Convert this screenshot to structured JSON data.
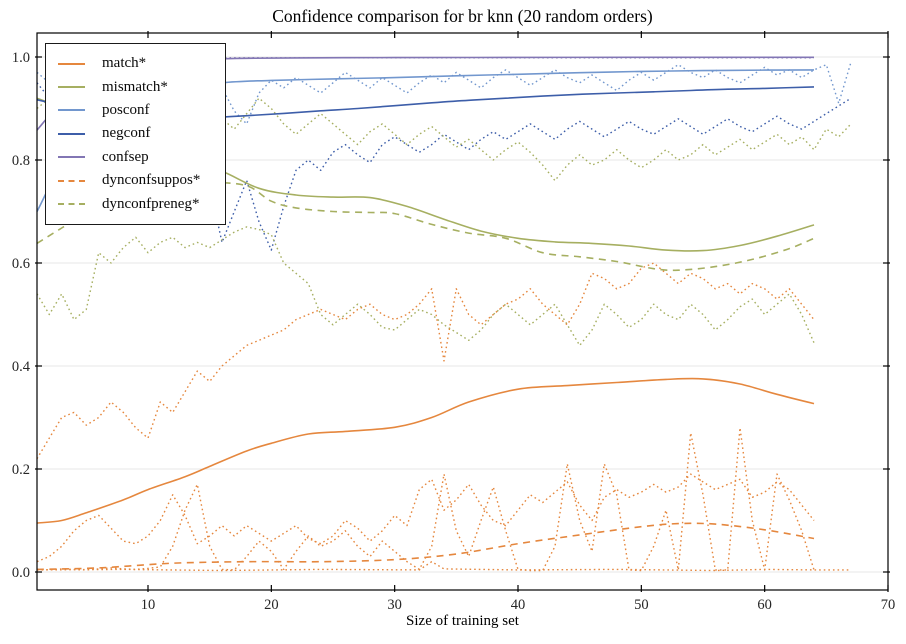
{
  "chart_data": {
    "type": "line",
    "title": "Confidence comparison for br knn (20 random orders)",
    "xlabel": "Size of training set",
    "ylabel": "",
    "xlim": [
      1,
      70
    ],
    "ylim": [
      0.0,
      1.0
    ],
    "x_ticks": [
      "10",
      "20",
      "30",
      "40",
      "50",
      "60",
      "70"
    ],
    "y_ticks": [
      "0.0",
      "0.2",
      "0.4",
      "0.6",
      "0.8",
      "1.0"
    ],
    "grid": "horizontal",
    "legend_position": "upper left",
    "colors": {
      "orange": "#E5873E",
      "olive": "#A6AF61",
      "lightblue": "#7297CE",
      "blue": "#3D5EA9",
      "purple": "#8276B4",
      "grid": "#E7E7E7",
      "axis": "#000000",
      "text": "#262626"
    },
    "legend": [
      {
        "label": "match*",
        "color": "orange",
        "dash": false
      },
      {
        "label": "mismatch*",
        "color": "olive",
        "dash": false
      },
      {
        "label": "posconf",
        "color": "lightblue",
        "dash": false
      },
      {
        "label": "negconf",
        "color": "blue",
        "dash": false
      },
      {
        "label": "confsep",
        "color": "purple",
        "dash": false
      },
      {
        "label": "dynconfsuppos*",
        "color": "orange",
        "dash": true
      },
      {
        "label": "dynconfpreneg*",
        "color": "olive",
        "dash": true
      }
    ],
    "series": [
      {
        "name": "posconf_run",
        "color": "lightblue",
        "style": "dotted",
        "x_start": 1,
        "x_step": 1,
        "y": [
          0.97,
          0.95,
          0.96,
          0.94,
          0.96,
          0.95,
          0.97,
          0.96,
          0.95,
          0.96,
          0.94,
          0.95,
          0.96,
          0.96,
          0.935,
          0.94,
          0.895,
          0.87,
          0.93,
          0.955,
          0.94,
          0.96,
          0.945,
          0.93,
          0.95,
          0.97,
          0.955,
          0.94,
          0.96,
          0.945,
          0.93,
          0.95,
          0.965,
          0.95,
          0.97,
          0.955,
          0.94,
          0.96,
          0.975,
          0.96,
          0.945,
          0.96,
          0.975,
          0.96,
          0.95,
          0.965,
          0.95,
          0.935,
          0.955,
          0.97,
          0.955,
          0.97,
          0.985,
          0.97,
          0.96,
          0.975,
          0.96,
          0.95,
          0.965,
          0.98,
          0.965,
          0.975,
          0.96,
          0.975,
          0.985,
          0.91,
          0.99
        ]
      },
      {
        "name": "negconf_run",
        "color": "blue",
        "style": "dotted",
        "x_start": 1,
        "x_step": 1,
        "y": [
          0.95,
          0.92,
          0.9,
          0.91,
          0.89,
          0.9,
          0.88,
          0.86,
          0.87,
          0.85,
          0.83,
          0.82,
          0.81,
          0.8,
          0.75,
          0.64,
          0.7,
          0.76,
          0.68,
          0.625,
          0.71,
          0.78,
          0.8,
          0.78,
          0.815,
          0.83,
          0.81,
          0.795,
          0.83,
          0.845,
          0.83,
          0.815,
          0.83,
          0.85,
          0.835,
          0.82,
          0.84,
          0.855,
          0.84,
          0.855,
          0.87,
          0.855,
          0.84,
          0.86,
          0.875,
          0.86,
          0.845,
          0.86,
          0.875,
          0.86,
          0.85,
          0.865,
          0.88,
          0.865,
          0.85,
          0.865,
          0.88,
          0.865,
          0.855,
          0.87,
          0.885,
          0.87,
          0.86,
          0.875,
          0.89,
          0.905,
          0.92
        ]
      },
      {
        "name": "mismatch_run_hi",
        "color": "olive",
        "style": "dotted",
        "x_start": 1,
        "x_step": 1,
        "y": [
          0.9,
          0.92,
          0.89,
          0.91,
          0.93,
          0.9,
          0.92,
          0.94,
          0.91,
          0.89,
          0.92,
          0.9,
          0.93,
          0.93,
          0.9,
          0.88,
          0.86,
          0.89,
          0.92,
          0.9,
          0.87,
          0.85,
          0.87,
          0.89,
          0.87,
          0.85,
          0.83,
          0.855,
          0.87,
          0.85,
          0.83,
          0.85,
          0.865,
          0.845,
          0.825,
          0.84,
          0.82,
          0.8,
          0.82,
          0.835,
          0.815,
          0.79,
          0.76,
          0.79,
          0.81,
          0.79,
          0.8,
          0.82,
          0.8,
          0.785,
          0.8,
          0.82,
          0.8,
          0.81,
          0.83,
          0.81,
          0.825,
          0.84,
          0.82,
          0.835,
          0.85,
          0.83,
          0.845,
          0.82,
          0.86,
          0.845,
          0.87
        ]
      },
      {
        "name": "mismatch_run_lo",
        "color": "olive",
        "style": "dotted",
        "x_start": 1,
        "x_step": 1,
        "y": [
          0.54,
          0.5,
          0.54,
          0.49,
          0.51,
          0.62,
          0.6,
          0.63,
          0.65,
          0.62,
          0.64,
          0.65,
          0.63,
          0.64,
          0.63,
          0.645,
          0.66,
          0.67,
          0.665,
          0.655,
          0.6,
          0.58,
          0.56,
          0.5,
          0.48,
          0.5,
          0.52,
          0.5,
          0.475,
          0.47,
          0.49,
          0.51,
          0.5,
          0.48,
          0.465,
          0.45,
          0.47,
          0.5,
          0.52,
          0.5,
          0.48,
          0.5,
          0.52,
          0.48,
          0.44,
          0.47,
          0.52,
          0.5,
          0.475,
          0.49,
          0.52,
          0.5,
          0.49,
          0.52,
          0.5,
          0.47,
          0.49,
          0.515,
          0.53,
          0.5,
          0.52,
          0.54,
          0.5,
          0.445
        ]
      },
      {
        "name": "match_run_hi",
        "color": "orange",
        "style": "dotted",
        "x_start": 1,
        "x_step": 1,
        "y": [
          0.22,
          0.26,
          0.3,
          0.31,
          0.285,
          0.3,
          0.33,
          0.31,
          0.28,
          0.26,
          0.33,
          0.31,
          0.35,
          0.39,
          0.37,
          0.4,
          0.42,
          0.44,
          0.45,
          0.46,
          0.47,
          0.49,
          0.5,
          0.51,
          0.5,
          0.49,
          0.51,
          0.52,
          0.5,
          0.49,
          0.5,
          0.52,
          0.55,
          0.41,
          0.55,
          0.5,
          0.48,
          0.5,
          0.52,
          0.53,
          0.55,
          0.52,
          0.5,
          0.48,
          0.52,
          0.58,
          0.57,
          0.55,
          0.56,
          0.59,
          0.6,
          0.58,
          0.56,
          0.58,
          0.57,
          0.55,
          0.56,
          0.54,
          0.56,
          0.55,
          0.53,
          0.55,
          0.52,
          0.49
        ]
      },
      {
        "name": "match_run_lo",
        "color": "orange",
        "style": "dotted",
        "x_start": 1,
        "x_step": 1,
        "y": [
          0.02,
          0.03,
          0.05,
          0.08,
          0.1,
          0.11,
          0.085,
          0.06,
          0.055,
          0.07,
          0.1,
          0.15,
          0.11,
          0.055,
          0.07,
          0.09,
          0.07,
          0.09,
          0.075,
          0.06,
          0.075,
          0.09,
          0.065,
          0.055,
          0.07,
          0.1,
          0.085,
          0.06,
          0.08,
          0.11,
          0.09,
          0.16,
          0.18,
          0.12,
          0.14,
          0.17,
          0.13,
          0.1,
          0.09,
          0.12,
          0.15,
          0.135,
          0.155,
          0.175,
          0.13,
          0.1,
          0.145,
          0.16,
          0.145,
          0.155,
          0.17,
          0.155,
          0.165,
          0.19,
          0.175,
          0.16,
          0.17,
          0.18,
          0.145,
          0.155,
          0.175,
          0.16,
          0.13,
          0.1
        ]
      },
      {
        "name": "dynconfsuppos_run_hi",
        "color": "orange",
        "style": "dotted",
        "x_start": 1,
        "x_step": 1,
        "y": [
          0.005,
          0.004,
          0.006,
          0.005,
          0.004,
          0.006,
          0.008,
          0.006,
          0.005,
          0.007,
          0.01,
          0.05,
          0.12,
          0.17,
          0.05,
          0.005,
          0.004,
          0.03,
          0.06,
          0.04,
          0.005,
          0.04,
          0.07,
          0.05,
          0.06,
          0.08,
          0.05,
          0.03,
          0.06,
          0.04,
          0.02,
          0.005,
          0.05,
          0.19,
          0.08,
          0.03,
          0.1,
          0.165,
          0.08,
          0.005,
          0.003,
          0.003,
          0.05,
          0.21,
          0.1,
          0.04,
          0.21,
          0.15,
          0.004,
          0.003,
          0.05,
          0.12,
          0.004,
          0.27,
          0.15,
          0.004,
          0.004,
          0.28,
          0.1,
          0.004,
          0.19,
          0.14,
          0.08,
          0.004
        ]
      },
      {
        "name": "dynconfsuppos_run_lo",
        "color": "orange",
        "style": "dotted",
        "x": [
          1,
          8,
          16,
          24,
          32,
          33,
          34,
          40,
          48,
          56,
          60,
          64,
          67
        ],
        "y": [
          0.004,
          0.005,
          0.003,
          0.005,
          0.004,
          0.02,
          0.006,
          0.004,
          0.005,
          0.003,
          0.005,
          0.004,
          0.004
        ]
      },
      {
        "name": "dynconfpreneg_mean",
        "color": "olive",
        "style": "dashed",
        "smooth": true,
        "x": [
          1,
          3,
          6,
          9,
          12,
          15,
          18,
          20,
          22,
          25,
          28,
          30,
          33,
          36,
          39,
          42,
          45,
          48,
          51,
          53,
          56,
          59,
          62,
          64
        ],
        "y": [
          0.638,
          0.668,
          0.71,
          0.735,
          0.75,
          0.756,
          0.75,
          0.72,
          0.707,
          0.7,
          0.698,
          0.696,
          0.675,
          0.658,
          0.648,
          0.62,
          0.612,
          0.603,
          0.589,
          0.586,
          0.593,
          0.607,
          0.628,
          0.648
        ]
      },
      {
        "name": "dynconfsuppos_mean",
        "color": "orange",
        "style": "dashed",
        "smooth": true,
        "x": [
          1,
          6,
          12,
          18,
          24,
          30,
          35,
          40,
          45,
          50,
          53,
          56,
          60,
          64
        ],
        "y": [
          0.005,
          0.008,
          0.017,
          0.02,
          0.02,
          0.024,
          0.035,
          0.055,
          0.072,
          0.088,
          0.094,
          0.093,
          0.082,
          0.065
        ]
      },
      {
        "name": "mismatch_mean",
        "color": "olive",
        "style": "solid",
        "smooth": true,
        "x": [
          1,
          6,
          10,
          13,
          16,
          19,
          22,
          25,
          28,
          31,
          34,
          37,
          40,
          43,
          46,
          49,
          52,
          55,
          58,
          61,
          64
        ],
        "y": [
          0.92,
          0.875,
          0.835,
          0.8,
          0.778,
          0.745,
          0.732,
          0.728,
          0.727,
          0.71,
          0.685,
          0.662,
          0.648,
          0.641,
          0.638,
          0.633,
          0.625,
          0.624,
          0.634,
          0.652,
          0.674
        ]
      },
      {
        "name": "match_mean",
        "color": "orange",
        "style": "solid",
        "smooth": true,
        "x": [
          1,
          3,
          5,
          8,
          10,
          13,
          15,
          18,
          20,
          23,
          26,
          30,
          33,
          36,
          40,
          44,
          48,
          52,
          55,
          58,
          61,
          64
        ],
        "y": [
          0.095,
          0.1,
          0.115,
          0.14,
          0.16,
          0.185,
          0.205,
          0.235,
          0.25,
          0.268,
          0.273,
          0.281,
          0.3,
          0.33,
          0.355,
          0.362,
          0.368,
          0.374,
          0.375,
          0.365,
          0.345,
          0.327
        ]
      },
      {
        "name": "posconf_mean",
        "color": "lightblue",
        "style": "solid",
        "smooth": true,
        "x": [
          1,
          4,
          8,
          12,
          16,
          20,
          25,
          30,
          35,
          40,
          45,
          50,
          55,
          60,
          64
        ],
        "y": [
          0.7,
          0.83,
          0.9,
          0.935,
          0.95,
          0.9545,
          0.9575,
          0.96,
          0.9635,
          0.9665,
          0.9695,
          0.972,
          0.9735,
          0.9745,
          0.975
        ]
      },
      {
        "name": "negconf_mean",
        "color": "blue",
        "style": "solid",
        "smooth": true,
        "x": [
          1,
          5,
          9,
          12,
          15,
          18,
          21,
          24,
          27,
          30,
          33,
          36,
          39,
          42,
          45,
          48,
          51,
          54,
          57,
          60,
          64
        ],
        "y": [
          0.917,
          0.896,
          0.8855,
          0.8825,
          0.8825,
          0.886,
          0.8905,
          0.8955,
          0.9,
          0.9055,
          0.911,
          0.916,
          0.92,
          0.924,
          0.9275,
          0.93,
          0.9325,
          0.935,
          0.9375,
          0.939,
          0.942
        ]
      },
      {
        "name": "confsep_mean",
        "color": "purple",
        "style": "solid",
        "smooth": true,
        "x": [
          1,
          3,
          6,
          9,
          12,
          15,
          18,
          24,
          30,
          40,
          50,
          64
        ],
        "y": [
          0.858,
          0.91,
          0.955,
          0.978,
          0.99,
          0.9955,
          0.9975,
          0.9985,
          0.9988,
          0.9992,
          0.9994,
          0.9995
        ]
      },
      {
        "name": "confsep_run",
        "color": "purple",
        "style": "dotted",
        "x": [
          14,
          64
        ],
        "y": [
          0.9985,
          0.9985
        ]
      }
    ]
  }
}
